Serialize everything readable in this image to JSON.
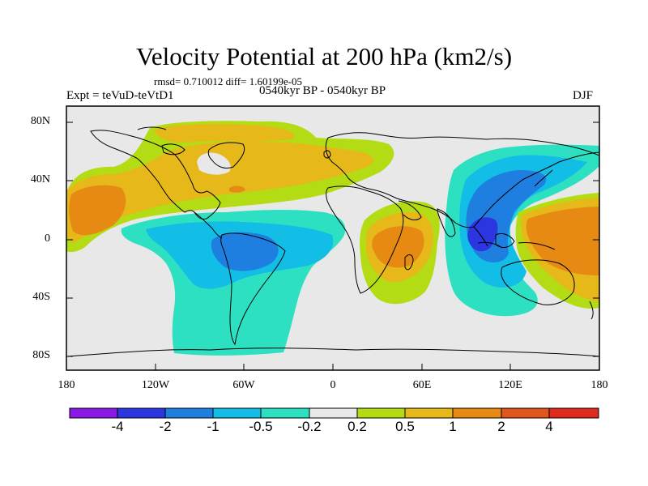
{
  "title": "Velocity Potential at 200 hPa (km2/s)",
  "stats": "rmsd= 0.710012  diff= 1.60199e-05",
  "experiment": "Expt = teVuD-teVtD1",
  "period": "0540kyr BP - 0540kyr BP",
  "season": "DJF",
  "lat_ticks": [
    "80N",
    "40N",
    "0",
    "40S",
    "80S"
  ],
  "lon_ticks": [
    "180",
    "120W",
    "60W",
    "0",
    "60E",
    "120E",
    "180"
  ],
  "colorbar": {
    "labels": [
      "-4",
      "-2",
      "-1",
      "-0.5",
      "-0.2",
      "0.2",
      "0.5",
      "1",
      "2",
      "4"
    ],
    "colors": [
      "#8a19e6",
      "#2b36e0",
      "#1f7fe0",
      "#12bde6",
      "#2de0c2",
      "#e8e8e8",
      "#b4dc14",
      "#e6b81a",
      "#e68a14",
      "#e0561c",
      "#e02a1e"
    ]
  },
  "regions": {
    "ne_pacific_atlantic_high": "0.5 to 2",
    "central_pacific_high": "1 to 2",
    "south_america_low": "-1 to -2",
    "southern_africa_high": "1 to 2",
    "maritime_continent_low": "-2 to -4",
    "west_pacific_high": "1 to 2"
  }
}
